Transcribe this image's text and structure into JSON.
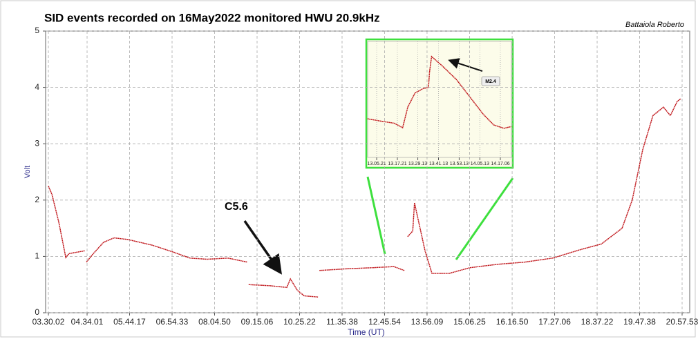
{
  "chart_data": [
    {
      "type": "line",
      "title": "SID events recorded on 16May2022 monitored HWU 20.9kHz",
      "credit": "Battaiola Roberto",
      "xlabel": "Time (UT)",
      "ylabel": "Volt",
      "annotations": [
        "C5.6"
      ],
      "xlim": [
        3.424,
        21.174
      ],
      "ylim": [
        0,
        5
      ],
      "yticks": [
        0,
        1,
        2,
        3,
        4,
        5
      ],
      "grid": true,
      "xticks": [
        {
          "value": 3.5006,
          "label": "03.30.02"
        },
        {
          "value": 4.5669,
          "label": "04.34.01"
        },
        {
          "value": 5.7381,
          "label": "05.44.17"
        },
        {
          "value": 6.9092,
          "label": "06.54.33"
        },
        {
          "value": 8.0806,
          "label": "08.04.50"
        },
        {
          "value": 9.2517,
          "label": "09.15.06"
        },
        {
          "value": 10.4228,
          "label": "10.25.22"
        },
        {
          "value": 11.5939,
          "label": "11.35.38"
        },
        {
          "value": 12.765,
          "label": "12.45.54"
        },
        {
          "value": 13.9358,
          "label": "13.56.09"
        },
        {
          "value": 15.1069,
          "label": "15.06.25"
        },
        {
          "value": 16.2806,
          "label": "16.16.50"
        },
        {
          "value": 17.4517,
          "label": "17.27.06"
        },
        {
          "value": 18.6228,
          "label": "18.37.22"
        },
        {
          "value": 19.7939,
          "label": "19.47.38"
        },
        {
          "value": 20.9647,
          "label": "20.57.53"
        }
      ],
      "series": [
        {
          "color": "#c0161b",
          "x": [
            3.5,
            3.6,
            3.79,
            3.98,
            4.07,
            4.51,
            null,
            4.55,
            4.74,
            5.02,
            5.31,
            5.69,
            6.36,
            6.93,
            7.4,
            7.88,
            8.45,
            8.98,
            null,
            9.02,
            9.59,
            10.07,
            10.17,
            10.36,
            10.55,
            10.93,
            null,
            10.97,
            11.69,
            12.45,
            13.02,
            13.31,
            null,
            13.4,
            13.54,
            13.59,
            13.88,
            14.07,
            14.55,
            15.12,
            15.88,
            16.64,
            17.4,
            18.16,
            18.74,
            19.31,
            19.59,
            19.88,
            20.16,
            20.45,
            20.64,
            20.83,
            20.93
          ],
          "values": [
            2.25,
            2.1,
            1.6,
            0.98,
            1.05,
            1.1,
            null,
            0.9,
            1.05,
            1.25,
            1.33,
            1.3,
            1.2,
            1.08,
            0.97,
            0.95,
            0.97,
            0.9,
            null,
            0.5,
            0.48,
            0.45,
            0.6,
            0.4,
            0.3,
            0.28,
            null,
            0.75,
            0.78,
            0.8,
            0.82,
            0.75,
            null,
            1.35,
            1.45,
            1.95,
            1.1,
            0.7,
            0.7,
            0.8,
            0.86,
            0.9,
            0.97,
            1.12,
            1.22,
            1.5,
            2.0,
            2.9,
            3.5,
            3.65,
            3.5,
            3.75,
            3.8
          ]
        }
      ]
    },
    {
      "type": "line",
      "annotations": [
        "M2.4"
      ],
      "xlim": [
        13.002,
        14.392
      ],
      "ylim": [
        0.15,
        2.22
      ],
      "grid": true,
      "xticks": [
        {
          "value": 13.0892,
          "label": "13.05.21"
        },
        {
          "value": 13.2892,
          "label": "13.17.21"
        },
        {
          "value": 13.4869,
          "label": "13.29.13"
        },
        {
          "value": 13.6869,
          "label": "13.41.13"
        },
        {
          "value": 13.8869,
          "label": "13.53.13"
        },
        {
          "value": 14.0869,
          "label": "14.05.13"
        },
        {
          "value": 14.285,
          "label": "14.17.06"
        }
      ],
      "series": [
        {
          "color": "#c0161b",
          "x": [
            13.0,
            13.12,
            13.26,
            13.34,
            13.39,
            13.46,
            13.54,
            13.59,
            13.6,
            13.62,
            13.72,
            13.86,
            13.99,
            14.12,
            14.22,
            14.32,
            14.39
          ],
          "values": [
            0.84,
            0.8,
            0.76,
            0.68,
            1.05,
            1.3,
            1.38,
            1.4,
            1.67,
            1.95,
            1.79,
            1.54,
            1.23,
            0.92,
            0.73,
            0.67,
            0.7
          ]
        }
      ]
    }
  ]
}
